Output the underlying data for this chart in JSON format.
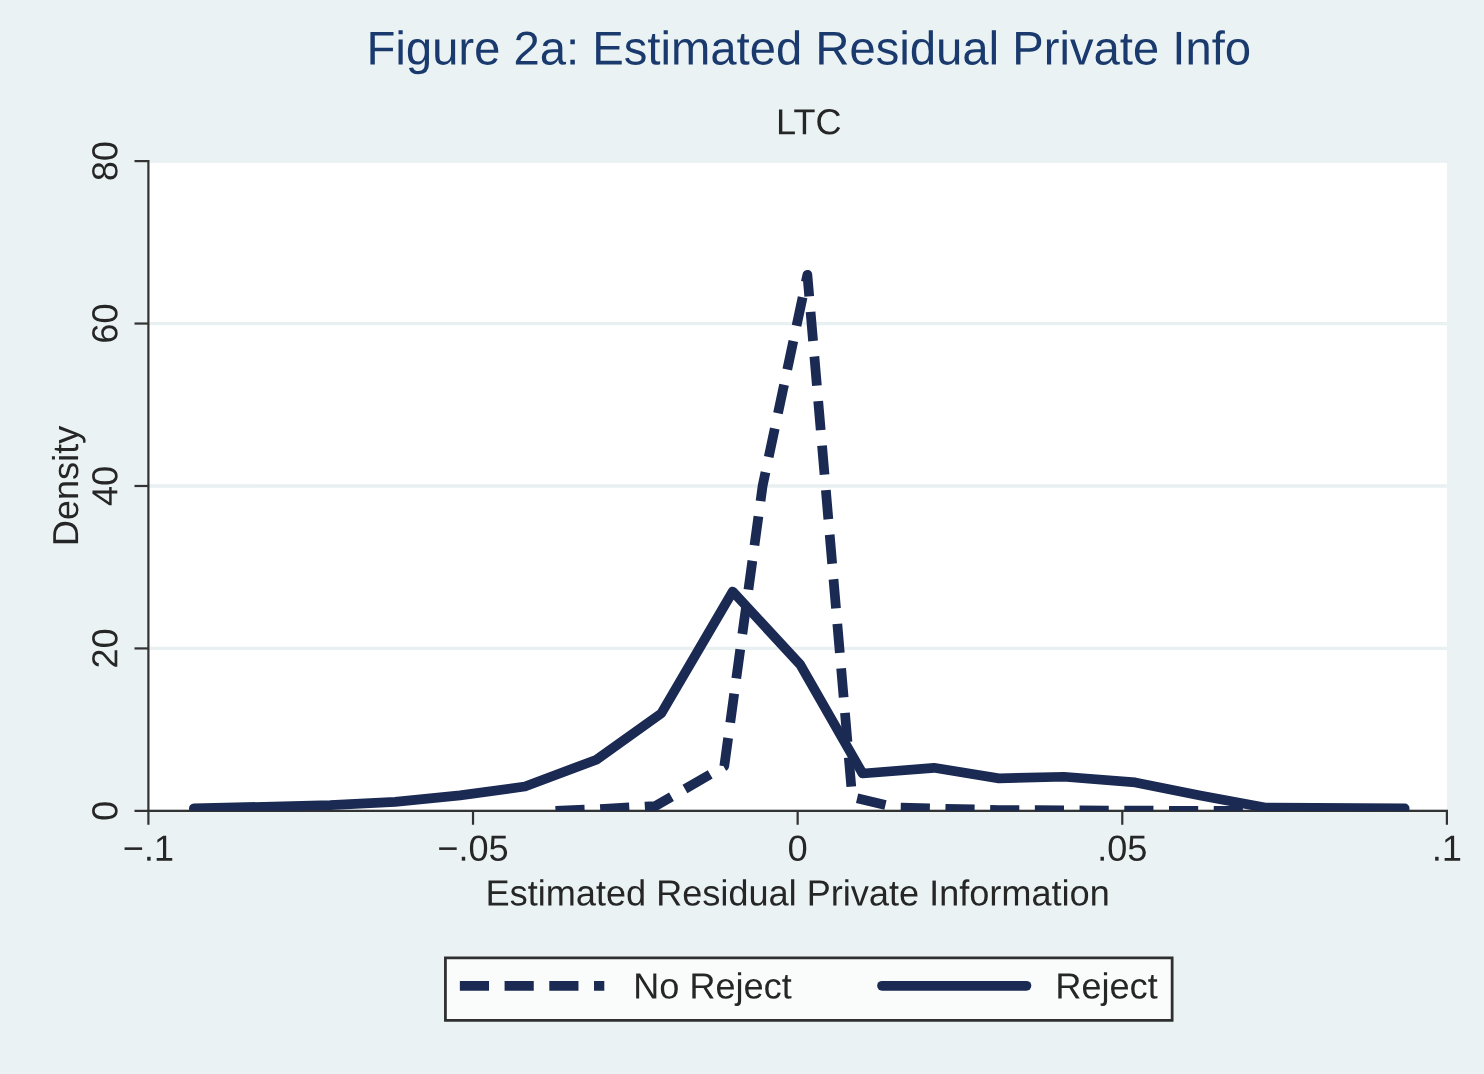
{
  "chart_data": {
    "type": "line",
    "title": "Figure 2a: Estimated Residual Private Info",
    "subtitle": "LTC",
    "xlabel": "Estimated Residual Private Information",
    "ylabel": "Density",
    "xlim": [
      -0.1,
      0.1
    ],
    "xticks": [
      {
        "value": -0.1,
        "label": "−.1"
      },
      {
        "value": -0.05,
        "label": "−.05"
      },
      {
        "value": 0,
        "label": "0"
      },
      {
        "value": 0.05,
        "label": ".05"
      },
      {
        "value": 0.1,
        "label": ".1"
      }
    ],
    "ylim": [
      0,
      80
    ],
    "yticks": [
      0,
      20,
      40,
      60,
      80
    ],
    "grid": "y",
    "legend": "bottom",
    "series": [
      {
        "name": "No Reject",
        "color": "#1a2a52",
        "line_style": "dashed",
        "x": [
          -0.0373,
          -0.031,
          -0.0219,
          -0.0113,
          -0.0054,
          0.0015,
          0.0084,
          0.0153,
          0.031,
          0.062,
          0.0935
        ],
        "values": [
          0,
          0.2,
          0.6,
          5.5,
          40,
          66,
          1.7,
          0.4,
          0.1,
          0,
          0
        ]
      },
      {
        "name": "Reject",
        "color": "#1a2a52",
        "line_style": "solid",
        "x": [
          -0.093,
          -0.072,
          -0.062,
          -0.052,
          -0.042,
          -0.031,
          -0.021,
          -0.01,
          0.0004,
          0.01,
          0.021,
          0.031,
          0.041,
          0.052,
          0.062,
          0.072,
          0.0935
        ],
        "values": [
          0.3,
          0.7,
          1.1,
          1.9,
          3.0,
          6.3,
          12,
          27,
          18,
          4.6,
          5.3,
          4.0,
          4.2,
          3.5,
          1.9,
          0.4,
          0.3
        ]
      }
    ]
  }
}
